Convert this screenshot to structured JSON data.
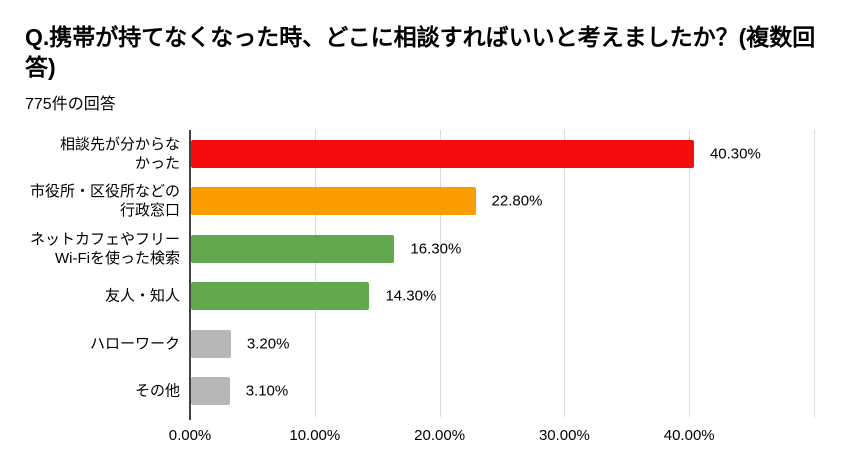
{
  "header": {
    "title": "Q.携帯が持てなくなった時、どこに相談すればいいと考えましたか？(複数回答)",
    "response_count": "775件の回答"
  },
  "chart_data": {
    "type": "bar",
    "orientation": "horizontal",
    "title": "Q.携帯が持てなくなった時、どこに相談すればいいと考えましたか？(複数回答)",
    "subtitle": "775件の回答",
    "categories": [
      "相談先が分からなかった",
      "市役所・区役所などの行政窓口",
      "ネットカフェやフリーWi-Fiを使った検索",
      "友人・知人",
      "ハローワーク",
      "その他"
    ],
    "display_labels": [
      "相談先が分からな\nかった",
      "市役所・区役所などの\n行政窓口",
      "ネットカフェやフリー\nWi-Fiを使った検索",
      "友人・知人",
      "ハローワーク",
      "その他"
    ],
    "values": [
      40.3,
      22.8,
      16.3,
      14.3,
      3.2,
      3.1
    ],
    "value_labels": [
      "40.30%",
      "22.80%",
      "16.30%",
      "14.30%",
      "3.20%",
      "3.10%"
    ],
    "bar_colors": [
      "#f50d0d",
      "#fb9d00",
      "#63a84f",
      "#63a84f",
      "#b7b7b7",
      "#b7b7b7"
    ],
    "xlim": [
      0,
      50
    ],
    "x_tick_values": [
      0,
      10,
      20,
      30,
      40
    ],
    "x_tick_labels": [
      "0.00%",
      "10.00%",
      "20.00%",
      "30.00%",
      "40.00%"
    ],
    "gridline_values": [
      10,
      20,
      30,
      40,
      50
    ],
    "grid": true,
    "legend": "none",
    "styles": {
      "gridline_color": "#dadada",
      "axis_line_color": "#424242",
      "text_color": "#000000"
    }
  }
}
